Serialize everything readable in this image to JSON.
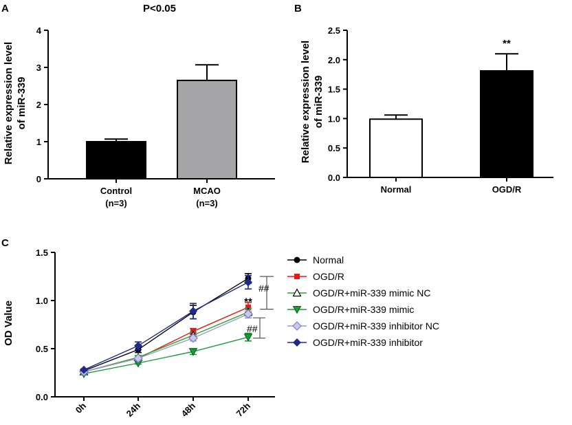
{
  "chart_data": [
    {
      "panel": "A",
      "type": "bar",
      "title": "P<0.05",
      "ylabel": [
        "Relative expression level",
        "of miR-339"
      ],
      "xlabel": "",
      "ylim": [
        0,
        4
      ],
      "yticks": [
        "0",
        "1",
        "2",
        "3",
        "4"
      ],
      "categories": [
        [
          "Control",
          "(n=3)"
        ],
        [
          "MCAO",
          "(n=3)"
        ]
      ],
      "values": [
        1.0,
        2.65
      ],
      "errors": [
        0.07,
        0.42
      ],
      "colors": [
        "#000000",
        "#a6a6a8"
      ]
    },
    {
      "panel": "B",
      "type": "bar",
      "title": "",
      "ylabel": [
        "Relative expression level",
        "of miR-339"
      ],
      "xlabel": "",
      "ylim": [
        0,
        2.5
      ],
      "yticks": [
        "0.0",
        "0.5",
        "1.0",
        "1.5",
        "2.0",
        "2.5"
      ],
      "categories": [
        [
          "Normal"
        ],
        [
          "OGD/R"
        ]
      ],
      "values": [
        0.99,
        1.81
      ],
      "errors": [
        0.07,
        0.29
      ],
      "colors": [
        "#ffffff",
        "#000000"
      ],
      "annotations": [
        {
          "category": "OGD/R",
          "text": "**"
        }
      ]
    },
    {
      "panel": "C",
      "type": "line",
      "title": "",
      "ylabel": "OD Value",
      "xlabel": "",
      "ylim": [
        0,
        1.5
      ],
      "yticks": [
        "0.0",
        "0.5",
        "1.0",
        "1.5"
      ],
      "categories": [
        "0h",
        "24h",
        "48h",
        "72h"
      ],
      "series": [
        {
          "name": "Normal",
          "values": [
            0.27,
            0.49,
            0.88,
            1.23
          ],
          "errors": [
            0.01,
            0.03,
            0.07,
            0.05
          ],
          "color": "#000000",
          "marker": "circle"
        },
        {
          "name": "OGD/R",
          "values": [
            0.26,
            0.4,
            0.68,
            0.93
          ],
          "errors": [
            0.01,
            0.02,
            0.03,
            0.05
          ],
          "color": "#e41a1c",
          "marker": "square"
        },
        {
          "name": "OGD/R+miR-339 mimic NC",
          "values": [
            0.26,
            0.41,
            0.64,
            0.88
          ],
          "errors": [
            0.01,
            0.02,
            0.03,
            0.04
          ],
          "color": "#2ca02c",
          "marker": "triangle-up-open"
        },
        {
          "name": "OGD/R+miR-339 mimic",
          "values": [
            0.24,
            0.35,
            0.47,
            0.62
          ],
          "errors": [
            0.01,
            0.01,
            0.03,
            0.04
          ],
          "color": "#1a9a3a",
          "marker": "triangle-down"
        },
        {
          "name": "OGD/R+miR-339 inhibitor NC",
          "values": [
            0.26,
            0.4,
            0.61,
            0.86
          ],
          "errors": [
            0.01,
            0.02,
            0.03,
            0.04
          ],
          "color": "#9a9ad4",
          "marker": "diamond-light"
        },
        {
          "name": "OGD/R+miR-339 inhibitor",
          "values": [
            0.28,
            0.53,
            0.89,
            1.19
          ],
          "errors": [
            0.01,
            0.04,
            0.08,
            0.07
          ],
          "color": "#1f2a8a",
          "marker": "diamond"
        }
      ],
      "annotations": [
        {
          "text": "**",
          "at": "72h"
        },
        {
          "text": "##",
          "bracket": "upper"
        },
        {
          "text": "##",
          "bracket": "lower"
        }
      ]
    }
  ]
}
